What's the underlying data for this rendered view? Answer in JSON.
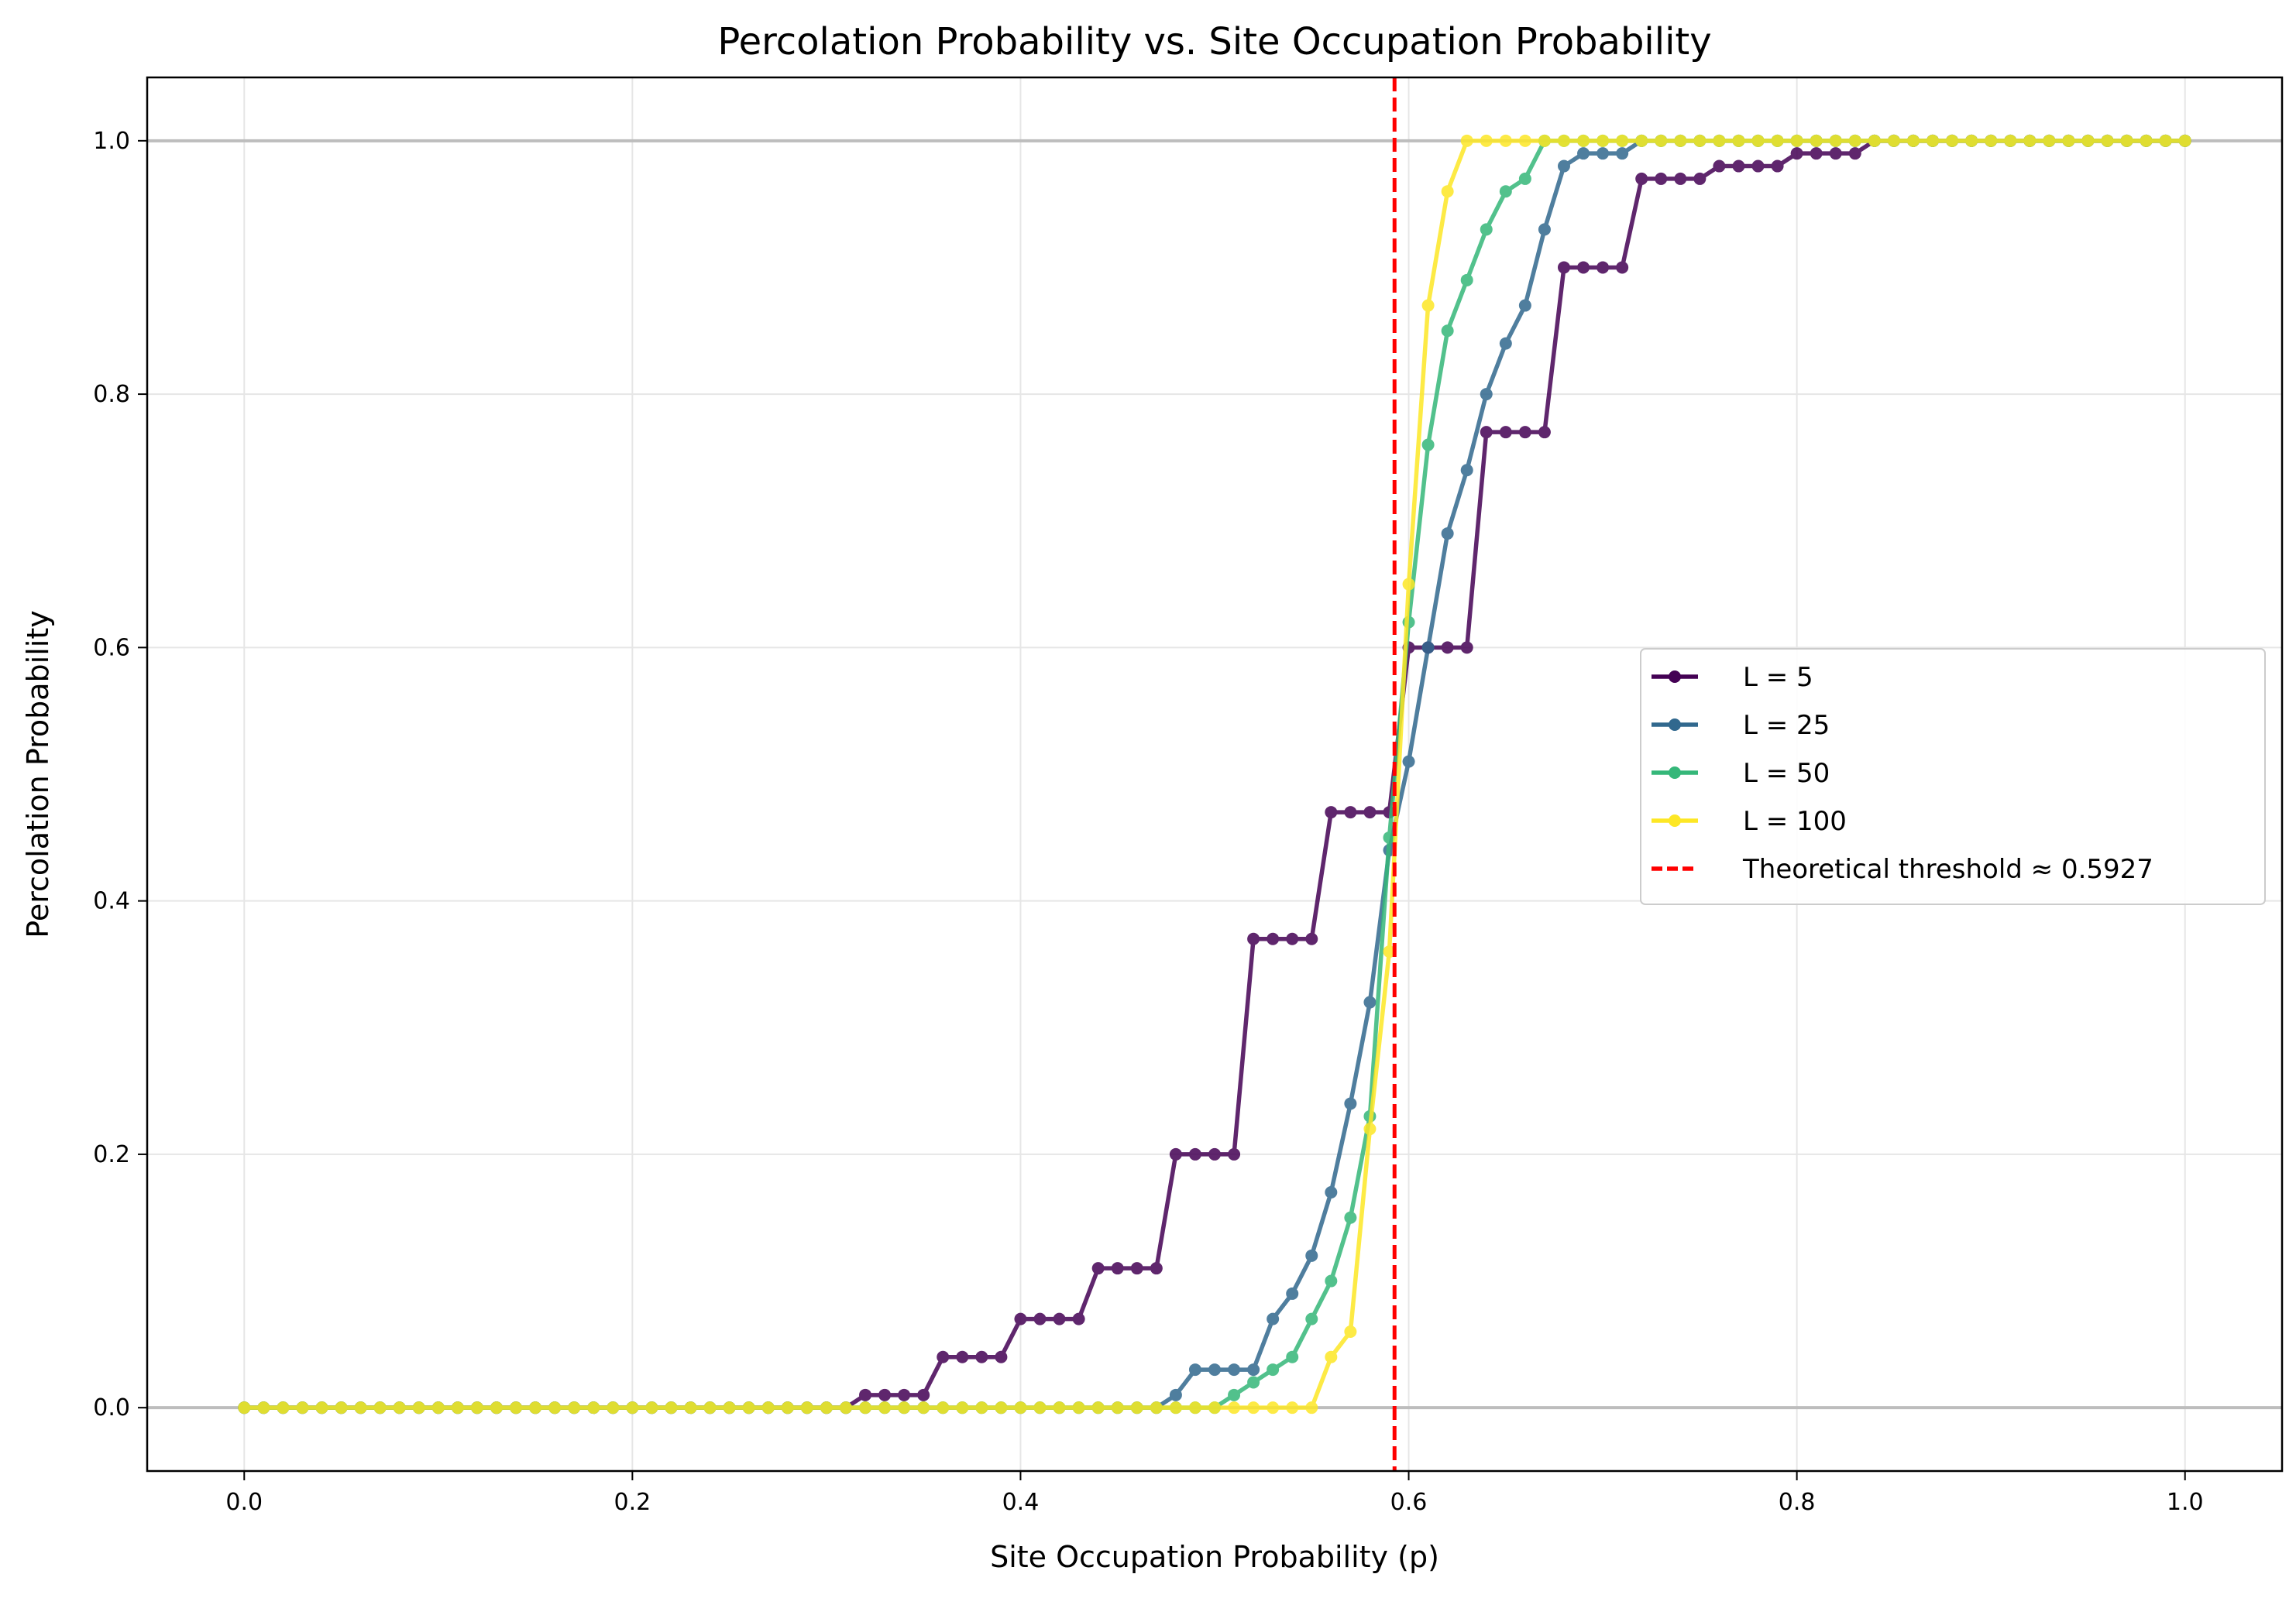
{
  "chart_data": {
    "type": "line",
    "title": "Percolation Probability vs. Site Occupation Probability",
    "xlabel": "Site Occupation Probability (p)",
    "ylabel": "Percolation Probability",
    "xlim": [
      -0.05,
      1.05
    ],
    "ylim": [
      -0.05,
      1.05
    ],
    "xticks": [
      0.0,
      0.2,
      0.4,
      0.6,
      0.8,
      1.0
    ],
    "yticks": [
      0.0,
      0.2,
      0.4,
      0.6,
      0.8,
      1.0
    ],
    "xtick_labels": [
      "0.0",
      "0.2",
      "0.4",
      "0.6",
      "0.8",
      "1.0"
    ],
    "ytick_labels": [
      "0.0",
      "0.2",
      "0.4",
      "0.6",
      "0.8",
      "1.0"
    ],
    "grid": true,
    "reference_lines_y": [
      0,
      1
    ],
    "legend_position": "center-right",
    "x_start": 0.0,
    "x_end": 1.0,
    "x_step": 0.01,
    "series": [
      {
        "name": "L = 5",
        "color": "#440154",
        "values": [
          0,
          0,
          0,
          0,
          0,
          0,
          0,
          0,
          0,
          0,
          0,
          0,
          0,
          0,
          0,
          0,
          0,
          0,
          0,
          0,
          0,
          0,
          0,
          0,
          0,
          0,
          0,
          0,
          0,
          0,
          0,
          0,
          0.01,
          0.01,
          0.01,
          0.01,
          0.04,
          0.04,
          0.04,
          0.04,
          0.07,
          0.07,
          0.07,
          0.07,
          0.11,
          0.11,
          0.11,
          0.11,
          0.2,
          0.2,
          0.2,
          0.2,
          0.37,
          0.37,
          0.37,
          0.37,
          0.47,
          0.47,
          0.47,
          0.47,
          0.6,
          0.6,
          0.6,
          0.6,
          0.77,
          0.77,
          0.77,
          0.77,
          0.9,
          0.9,
          0.9,
          0.9,
          0.97,
          0.97,
          0.97,
          0.97,
          0.98,
          0.98,
          0.98,
          0.98,
          0.99,
          0.99,
          0.99,
          0.99,
          1,
          1,
          1,
          1,
          1,
          1,
          1,
          1,
          1,
          1,
          1,
          1,
          1,
          1,
          1,
          1,
          1
        ]
      },
      {
        "name": "L = 25",
        "color": "#31688e",
        "values": [
          0,
          0,
          0,
          0,
          0,
          0,
          0,
          0,
          0,
          0,
          0,
          0,
          0,
          0,
          0,
          0,
          0,
          0,
          0,
          0,
          0,
          0,
          0,
          0,
          0,
          0,
          0,
          0,
          0,
          0,
          0,
          0,
          0,
          0,
          0,
          0,
          0,
          0,
          0,
          0,
          0,
          0,
          0,
          0,
          0,
          0,
          0,
          0,
          0.01,
          0.03,
          0.03,
          0.03,
          0.03,
          0.07,
          0.09,
          0.12,
          0.17,
          0.24,
          0.32,
          0.44,
          0.51,
          0.6,
          0.69,
          0.74,
          0.8,
          0.84,
          0.87,
          0.93,
          0.98,
          0.99,
          0.99,
          0.99,
          1,
          1,
          1,
          1,
          1,
          1,
          1,
          1,
          1,
          1,
          1,
          1,
          1,
          1,
          1,
          1,
          1,
          1,
          1,
          1,
          1,
          1,
          1,
          1,
          1,
          1,
          1,
          1,
          1
        ]
      },
      {
        "name": "L = 50",
        "color": "#35b779",
        "values": [
          0,
          0,
          0,
          0,
          0,
          0,
          0,
          0,
          0,
          0,
          0,
          0,
          0,
          0,
          0,
          0,
          0,
          0,
          0,
          0,
          0,
          0,
          0,
          0,
          0,
          0,
          0,
          0,
          0,
          0,
          0,
          0,
          0,
          0,
          0,
          0,
          0,
          0,
          0,
          0,
          0,
          0,
          0,
          0,
          0,
          0,
          0,
          0,
          0,
          0,
          0,
          0.01,
          0.02,
          0.03,
          0.04,
          0.07,
          0.1,
          0.15,
          0.23,
          0.45,
          0.62,
          0.76,
          0.85,
          0.89,
          0.93,
          0.96,
          0.97,
          1,
          1,
          1,
          1,
          1,
          1,
          1,
          1,
          1,
          1,
          1,
          1,
          1,
          1,
          1,
          1,
          1,
          1,
          1,
          1,
          1,
          1,
          1,
          1,
          1,
          1,
          1,
          1,
          1,
          1,
          1,
          1,
          1,
          1
        ]
      },
      {
        "name": "L = 100",
        "color": "#fde725",
        "values": [
          0,
          0,
          0,
          0,
          0,
          0,
          0,
          0,
          0,
          0,
          0,
          0,
          0,
          0,
          0,
          0,
          0,
          0,
          0,
          0,
          0,
          0,
          0,
          0,
          0,
          0,
          0,
          0,
          0,
          0,
          0,
          0,
          0,
          0,
          0,
          0,
          0,
          0,
          0,
          0,
          0,
          0,
          0,
          0,
          0,
          0,
          0,
          0,
          0,
          0,
          0,
          0,
          0,
          0,
          0,
          0,
          0.04,
          0.06,
          0.22,
          0.36,
          0.65,
          0.87,
          0.96,
          1,
          1,
          1,
          1,
          1,
          1,
          1,
          1,
          1,
          1,
          1,
          1,
          1,
          1,
          1,
          1,
          1,
          1,
          1,
          1,
          1,
          1,
          1,
          1,
          1,
          1,
          1,
          1,
          1,
          1,
          1,
          1,
          1,
          1,
          1,
          1,
          1,
          1
        ]
      }
    ],
    "threshold": {
      "name": "Theoretical threshold ≈ 0.5927",
      "x": 0.5927,
      "color": "#ff0000"
    }
  }
}
